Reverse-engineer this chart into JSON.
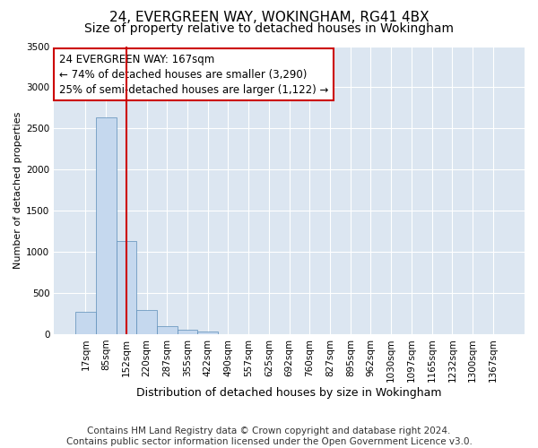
{
  "title": "24, EVERGREEN WAY, WOKINGHAM, RG41 4BX",
  "subtitle": "Size of property relative to detached houses in Wokingham",
  "xlabel": "Distribution of detached houses by size in Wokingham",
  "ylabel": "Number of detached properties",
  "bar_color": "#c5d8ee",
  "bar_edge_color": "#5b8db8",
  "background_color": "#dce6f1",
  "grid_color": "#ffffff",
  "annotation_line1": "24 EVERGREEN WAY: 167sqm",
  "annotation_line2": "← 74% of detached houses are smaller (3,290)",
  "annotation_line3": "25% of semi-detached houses are larger (1,122) →",
  "annotation_box_color": "#ffffff",
  "annotation_box_edge_color": "#cc0000",
  "vline_color": "#cc0000",
  "vline_x_index": 2,
  "categories": [
    "17sqm",
    "85sqm",
    "152sqm",
    "220sqm",
    "287sqm",
    "355sqm",
    "422sqm",
    "490sqm",
    "557sqm",
    "625sqm",
    "692sqm",
    "760sqm",
    "827sqm",
    "895sqm",
    "962sqm",
    "1030sqm",
    "1097sqm",
    "1165sqm",
    "1232sqm",
    "1300sqm",
    "1367sqm"
  ],
  "values": [
    270,
    2630,
    1130,
    290,
    100,
    55,
    30,
    0,
    0,
    0,
    0,
    0,
    0,
    0,
    0,
    0,
    0,
    0,
    0,
    0,
    0
  ],
  "ylim": [
    0,
    3500
  ],
  "yticks": [
    0,
    500,
    1000,
    1500,
    2000,
    2500,
    3000,
    3500
  ],
  "footer_text": "Contains HM Land Registry data © Crown copyright and database right 2024.\nContains public sector information licensed under the Open Government Licence v3.0.",
  "title_fontsize": 11,
  "subtitle_fontsize": 10,
  "annotation_fontsize": 8.5,
  "ylabel_fontsize": 8,
  "xlabel_fontsize": 9,
  "footer_fontsize": 7.5,
  "tick_fontsize": 7.5
}
